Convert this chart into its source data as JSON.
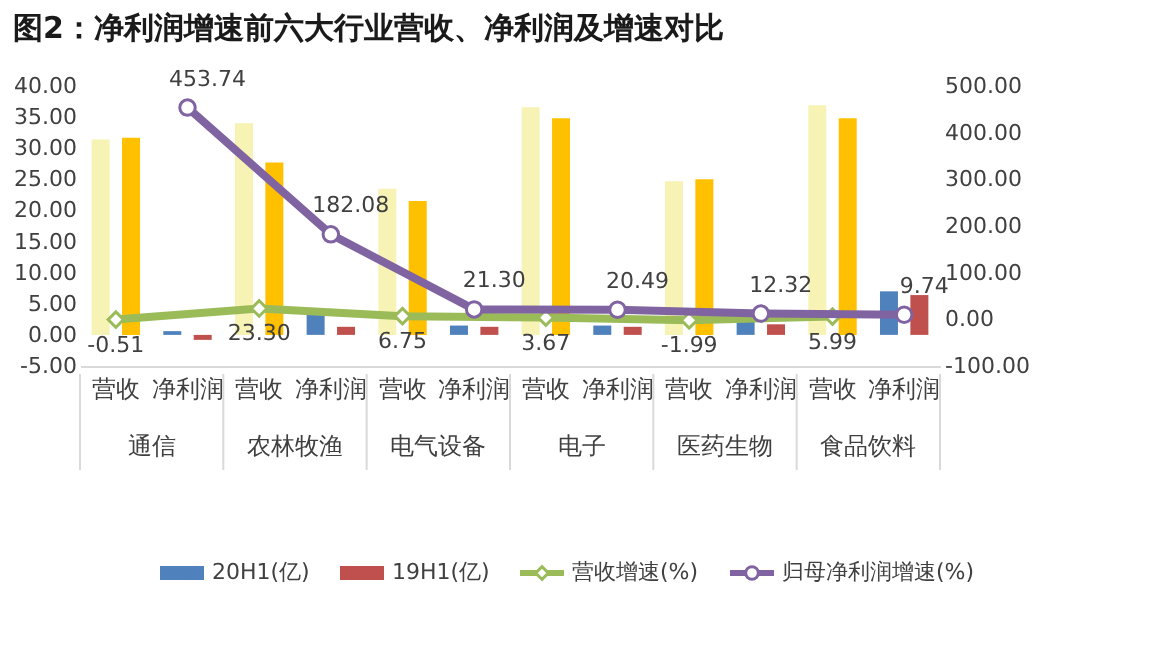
{
  "chart_data": {
    "type": "bar",
    "title": "图2：净利润增速前六大行业营收、净利润及增速对比",
    "categories": [
      "营收",
      "净利润",
      "营收",
      "净利润",
      "营收",
      "净利润",
      "营收",
      "净利润",
      "营收",
      "净利润",
      "营收",
      "净利润"
    ],
    "annotations": [
      "通信",
      "农林牧渔",
      "电气设备",
      "电子",
      "医药生物",
      "食品饮料"
    ],
    "series": [
      {
        "name": "20H1(亿)",
        "type": "bar",
        "color": "#4f81bd",
        "colors": [
          "#f6f3b5",
          "#4f81bd",
          "#f6f3b5",
          "#4f81bd",
          "#f6f3b5",
          "#4f81bd",
          "#f6f3b5",
          "#4f81bd",
          "#f6f3b5",
          "#4f81bd",
          "#f6f3b5",
          "#4f81bd"
        ],
        "values": [
          31.4,
          0.6,
          34.0,
          3.3,
          23.5,
          1.5,
          36.6,
          1.5,
          24.7,
          2.1,
          36.9,
          7.0
        ]
      },
      {
        "name": "19H1(亿)",
        "type": "bar",
        "color": "#c0504d",
        "colors": [
          "#ffc000",
          "#c0504d",
          "#ffc000",
          "#c0504d",
          "#ffc000",
          "#c0504d",
          "#ffc000",
          "#c0504d",
          "#ffc000",
          "#c0504d",
          "#ffc000",
          "#c0504d"
        ],
        "values": [
          31.7,
          -0.8,
          27.7,
          1.3,
          21.5,
          1.3,
          34.8,
          1.3,
          25.0,
          1.7,
          34.8,
          6.4
        ]
      },
      {
        "name": "营收增速(%)",
        "type": "line",
        "axis": "y2",
        "marker": "diamond",
        "color": "#9bbb59",
        "values": [
          -0.51,
          null,
          23.3,
          null,
          6.75,
          null,
          3.67,
          null,
          -1.99,
          null,
          5.99,
          null
        ],
        "value_labels": [
          "-0.51",
          null,
          "23.30",
          null,
          "6.75",
          null,
          "3.67",
          null,
          "-1.99",
          null,
          "5.99",
          null
        ]
      },
      {
        "name": "归母净利润增速(%)",
        "type": "line",
        "axis": "y2",
        "marker": "circle",
        "color": "#8064a2",
        "values": [
          null,
          453.74,
          null,
          182.08,
          null,
          21.3,
          null,
          20.49,
          null,
          12.32,
          null,
          9.74
        ],
        "value_labels": [
          null,
          "453.74",
          null,
          "182.08",
          null,
          "21.30",
          null,
          "20.49",
          null,
          "12.32",
          null,
          "9.74"
        ]
      }
    ],
    "ylim": [
      -5,
      40
    ],
    "yticks": [
      {
        "value": -5,
        "label": "-5.00"
      },
      {
        "value": 0,
        "label": "0.00"
      },
      {
        "value": 5,
        "label": "5.00"
      },
      {
        "value": 10,
        "label": "10.00"
      },
      {
        "value": 15,
        "label": "15.00"
      },
      {
        "value": 20,
        "label": "20.00"
      },
      {
        "value": 25,
        "label": "25.00"
      },
      {
        "value": 30,
        "label": "30.00"
      },
      {
        "value": 35,
        "label": "35.00"
      },
      {
        "value": 40,
        "label": "40.00"
      }
    ],
    "y2lim": [
      -100,
      500
    ],
    "y2ticks": [
      {
        "value": -100,
        "label": "-100.00"
      },
      {
        "value": 0,
        "label": "0.00"
      },
      {
        "value": 100,
        "label": "100.00"
      },
      {
        "value": 200,
        "label": "200.00"
      },
      {
        "value": 300,
        "label": "300.00"
      },
      {
        "value": 400,
        "label": "400.00"
      },
      {
        "value": 500,
        "label": "500.00"
      }
    ],
    "grid": false,
    "legend": "bottom"
  }
}
